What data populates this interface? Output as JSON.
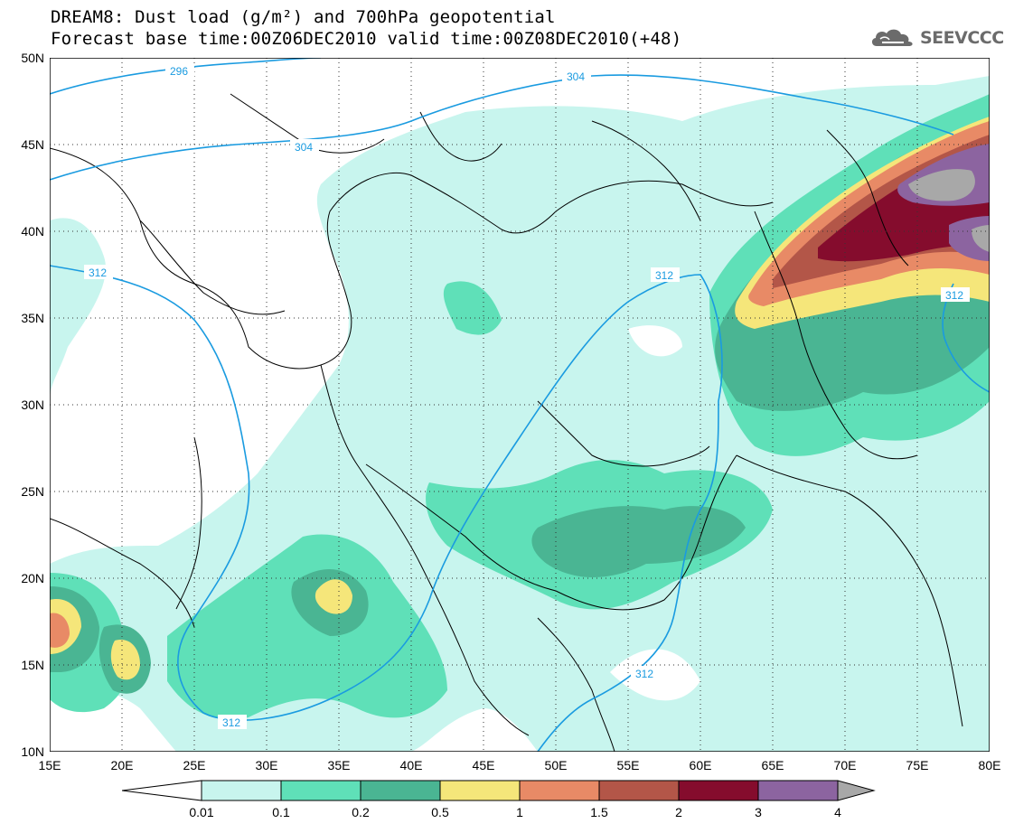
{
  "title": {
    "line1": "DREAM8: Dust load (g/m²) and 700hPa geopotential",
    "line2": "Forecast base time:00Z06DEC2010 valid time:00Z08DEC2010(+48)"
  },
  "logo": {
    "text": "SEEVCCC",
    "icon": "cloud-icon"
  },
  "map": {
    "lon_range": [
      15,
      80
    ],
    "lat_range": [
      10,
      50
    ],
    "x_ticks": [
      "15E",
      "20E",
      "25E",
      "30E",
      "35E",
      "40E",
      "45E",
      "50E",
      "55E",
      "60E",
      "65E",
      "70E",
      "75E",
      "80E"
    ],
    "y_ticks": [
      "50N",
      "45N",
      "40N",
      "35N",
      "30N",
      "25N",
      "20N",
      "15N",
      "10N"
    ],
    "gridlines": "dotted"
  },
  "isolines": [
    {
      "label": "296"
    },
    {
      "label": "304"
    },
    {
      "label": "304"
    },
    {
      "label": "312"
    },
    {
      "label": "312"
    },
    {
      "label": "312"
    },
    {
      "label": "312"
    }
  ],
  "colorbar": {
    "labels": [
      "0.01",
      "0.1",
      "0.2",
      "0.5",
      "1",
      "1.5",
      "2",
      "3",
      "4"
    ],
    "colors": [
      "#c8f5ee",
      "#5fe0b8",
      "#4ab593",
      "#f5e67a",
      "#e88a66",
      "#b35648",
      "#850c2d",
      "#8c64a0",
      "#a8a8a8"
    ]
  }
}
